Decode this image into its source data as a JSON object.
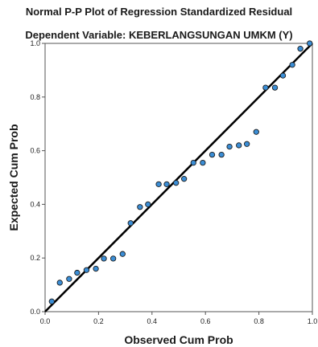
{
  "chart_data": {
    "type": "scatter",
    "title": "Normal P-P Plot of Regression Standardized Residual",
    "subtitle": "Dependent Variable: KEBERLANGSUNGAN UMKM (Y)",
    "xlabel": "Observed Cum Prob",
    "ylabel": "Expected Cum Prob",
    "xlim": [
      0,
      1
    ],
    "ylim": [
      0,
      1
    ],
    "xticks": [
      "0.0",
      "0.2",
      "0.4",
      "0.6",
      "0.8",
      "1.0"
    ],
    "yticks": [
      "0.0",
      "0.2",
      "0.4",
      "0.6",
      "0.8",
      "1.0"
    ],
    "grid": false,
    "reference_line": {
      "from": [
        0,
        0
      ],
      "to": [
        1,
        1
      ],
      "color": "#000000"
    },
    "marker_fill": "#3b8ed6",
    "marker_stroke": "#1a1a1a",
    "points": [
      {
        "x": 0.025,
        "y": 0.038
      },
      {
        "x": 0.055,
        "y": 0.108
      },
      {
        "x": 0.09,
        "y": 0.122
      },
      {
        "x": 0.12,
        "y": 0.145
      },
      {
        "x": 0.155,
        "y": 0.155
      },
      {
        "x": 0.19,
        "y": 0.16
      },
      {
        "x": 0.22,
        "y": 0.198
      },
      {
        "x": 0.255,
        "y": 0.198
      },
      {
        "x": 0.29,
        "y": 0.215
      },
      {
        "x": 0.32,
        "y": 0.33
      },
      {
        "x": 0.355,
        "y": 0.39
      },
      {
        "x": 0.385,
        "y": 0.4
      },
      {
        "x": 0.425,
        "y": 0.475
      },
      {
        "x": 0.455,
        "y": 0.475
      },
      {
        "x": 0.49,
        "y": 0.48
      },
      {
        "x": 0.52,
        "y": 0.495
      },
      {
        "x": 0.555,
        "y": 0.555
      },
      {
        "x": 0.59,
        "y": 0.555
      },
      {
        "x": 0.625,
        "y": 0.585
      },
      {
        "x": 0.66,
        "y": 0.585
      },
      {
        "x": 0.69,
        "y": 0.615
      },
      {
        "x": 0.725,
        "y": 0.62
      },
      {
        "x": 0.755,
        "y": 0.625
      },
      {
        "x": 0.79,
        "y": 0.67
      },
      {
        "x": 0.825,
        "y": 0.835
      },
      {
        "x": 0.86,
        "y": 0.835
      },
      {
        "x": 0.89,
        "y": 0.88
      },
      {
        "x": 0.925,
        "y": 0.92
      },
      {
        "x": 0.955,
        "y": 0.98
      },
      {
        "x": 0.99,
        "y": 1.0
      }
    ]
  }
}
